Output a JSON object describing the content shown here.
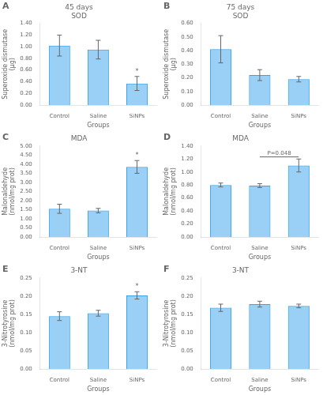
{
  "chart_data": [
    {
      "type": "bar",
      "panel_label": "A",
      "title": "45 days\nSOD",
      "xlabel": "Groups",
      "ylabel": "Superoxide dismutase\n(μg)",
      "categories": [
        "Control",
        "Saline",
        "SiNPs"
      ],
      "values": [
        1.02,
        0.95,
        0.37
      ],
      "errors": [
        0.18,
        0.16,
        0.12
      ],
      "ylim": [
        0,
        1.4
      ],
      "yticks": [
        {
          "value": 0.0,
          "label": "0.00"
        },
        {
          "value": 0.2,
          "label": "0.20"
        },
        {
          "value": 0.4,
          "label": "0.40"
        },
        {
          "value": 0.6,
          "label": "0.60"
        },
        {
          "value": 0.8,
          "label": "0.80"
        },
        {
          "value": 1.0,
          "label": "1.00"
        },
        {
          "value": 1.2,
          "label": "1.20"
        },
        {
          "value": 1.4,
          "label": "1.40"
        }
      ],
      "grid": false,
      "significance": [
        null,
        null,
        "*"
      ]
    },
    {
      "type": "bar",
      "panel_label": "B",
      "title": "75 days\nSOD",
      "xlabel": "Groups",
      "ylabel": "Superoxide dismutase\n(μg)",
      "categories": [
        "Control",
        "Saline",
        "SiNPs"
      ],
      "values": [
        0.41,
        0.22,
        0.19
      ],
      "errors": [
        0.1,
        0.04,
        0.02
      ],
      "ylim": [
        0,
        0.6
      ],
      "yticks": [
        {
          "value": 0.0,
          "label": "0.00"
        },
        {
          "value": 0.1,
          "label": "0.10"
        },
        {
          "value": 0.2,
          "label": "0.20"
        },
        {
          "value": 0.3,
          "label": "0.30"
        },
        {
          "value": 0.4,
          "label": "0.40"
        },
        {
          "value": 0.5,
          "label": "0.50"
        },
        {
          "value": 0.6,
          "label": "0.60"
        }
      ],
      "grid": false,
      "significance": [
        null,
        null,
        null
      ]
    },
    {
      "type": "bar",
      "panel_label": "C",
      "title": "MDA",
      "xlabel": "Groups",
      "ylabel": "Malonaldehyde\n(nmol/mg prot)",
      "categories": [
        "Control",
        "Saline",
        "SiNPs"
      ],
      "values": [
        1.55,
        1.45,
        3.85
      ],
      "errors": [
        0.25,
        0.12,
        0.35
      ],
      "ylim": [
        0,
        5.0
      ],
      "yticks": [
        {
          "value": 0.0,
          "label": "0.00"
        },
        {
          "value": 0.5,
          "label": "0.50"
        },
        {
          "value": 1.0,
          "label": "1.00"
        },
        {
          "value": 1.5,
          "label": "1.50"
        },
        {
          "value": 2.0,
          "label": "2.00"
        },
        {
          "value": 2.5,
          "label": "2.50"
        },
        {
          "value": 3.0,
          "label": "3.00"
        },
        {
          "value": 3.5,
          "label": "3.50"
        },
        {
          "value": 4.0,
          "label": "4.00"
        },
        {
          "value": 4.5,
          "label": "4.50"
        },
        {
          "value": 5.0,
          "label": "5.00"
        }
      ],
      "grid": false,
      "significance": [
        null,
        null,
        "*"
      ]
    },
    {
      "type": "bar",
      "panel_label": "D",
      "title": "MDA",
      "xlabel": "Groups",
      "ylabel": "Malonaldehyde\n(nmol/mg prot)",
      "categories": [
        "Control",
        "Saline",
        "SiNPs"
      ],
      "values": [
        0.8,
        0.79,
        1.1
      ],
      "errors": [
        0.03,
        0.03,
        0.1
      ],
      "ylim": [
        0,
        1.4
      ],
      "yticks": [
        {
          "value": 0.0,
          "label": "0.00"
        },
        {
          "value": 0.2,
          "label": "0.20"
        },
        {
          "value": 0.4,
          "label": "0.40"
        },
        {
          "value": 0.6,
          "label": "0.60"
        },
        {
          "value": 0.8,
          "label": "0.80"
        },
        {
          "value": 1.0,
          "label": "1.00"
        },
        {
          "value": 1.2,
          "label": "1.20"
        },
        {
          "value": 1.4,
          "label": "1.40"
        }
      ],
      "grid": false,
      "significance": [
        null,
        null,
        null
      ],
      "sig_bar": {
        "from": "Saline",
        "to": "SiNPs",
        "text": "P=0.048"
      }
    },
    {
      "type": "bar",
      "panel_label": "E",
      "title": "3-NT",
      "xlabel": "Groups",
      "ylabel": "3-Nitrotyrosine\n(nmol/mg prot)",
      "categories": [
        "Control",
        "Saline",
        "SiNPs"
      ],
      "values": [
        0.145,
        0.153,
        0.202
      ],
      "errors": [
        0.012,
        0.008,
        0.01
      ],
      "ylim": [
        0,
        0.25
      ],
      "yticks": [
        {
          "value": 0.0,
          "label": "0.00"
        },
        {
          "value": 0.05,
          "label": "0.05"
        },
        {
          "value": 0.1,
          "label": "0.10"
        },
        {
          "value": 0.15,
          "label": "0.15"
        },
        {
          "value": 0.2,
          "label": "0.20"
        },
        {
          "value": 0.25,
          "label": "0.25"
        }
      ],
      "grid": false,
      "significance": [
        null,
        null,
        "*"
      ]
    },
    {
      "type": "bar",
      "panel_label": "F",
      "title": "3-NT",
      "xlabel": "Groups",
      "ylabel": "3-Nitrotyrosine\n(nmol/mg prot)",
      "categories": [
        "Control",
        "Saline",
        "SiNPs"
      ],
      "values": [
        0.168,
        0.178,
        0.173
      ],
      "errors": [
        0.01,
        0.008,
        0.005
      ],
      "ylim": [
        0,
        0.25
      ],
      "yticks": [
        {
          "value": 0.0,
          "label": "0.00"
        },
        {
          "value": 0.05,
          "label": "0.05"
        },
        {
          "value": 0.1,
          "label": "0.10"
        },
        {
          "value": 0.15,
          "label": "0.15"
        },
        {
          "value": 0.2,
          "label": "0.20"
        },
        {
          "value": 0.25,
          "label": "0.25"
        }
      ],
      "grid": false,
      "significance": [
        null,
        null,
        null
      ]
    }
  ]
}
